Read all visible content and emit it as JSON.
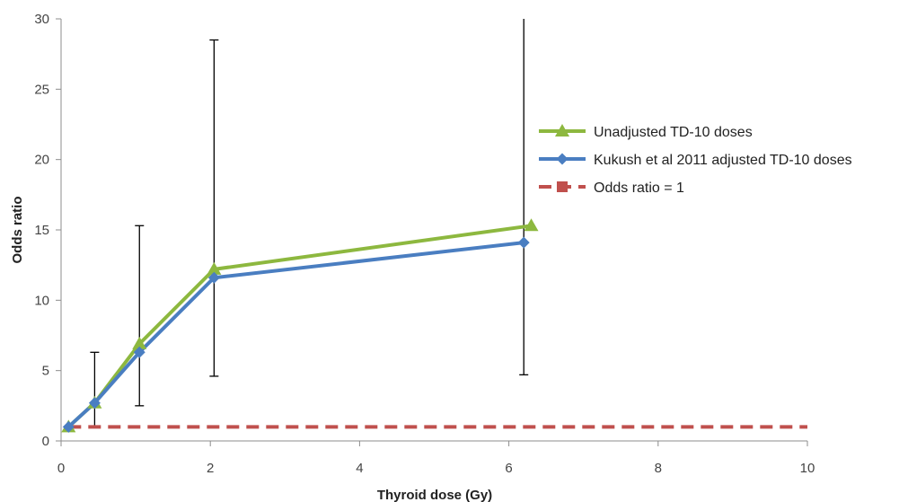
{
  "chart_data": {
    "type": "line",
    "title": "",
    "xlabel": "Thyroid dose (Gy)",
    "ylabel": "Odds ratio",
    "xlim": [
      0,
      10
    ],
    "ylim": [
      0,
      30
    ],
    "xticks": [
      0,
      2,
      4,
      6,
      8,
      10
    ],
    "yticks": [
      0,
      5,
      10,
      15,
      20,
      25,
      30
    ],
    "grid": false,
    "legend_position": "right",
    "series": [
      {
        "name": "Unadjusted TD-10 doses",
        "marker": "triangle",
        "color": "#8DB83F",
        "points": [
          {
            "x": 0.1,
            "y": 1.0
          },
          {
            "x": 0.45,
            "y": 2.7
          },
          {
            "x": 1.05,
            "y": 6.9
          },
          {
            "x": 2.05,
            "y": 12.2
          },
          {
            "x": 6.3,
            "y": 15.3
          }
        ]
      },
      {
        "name": "Kukush et al 2011 adjusted TD-10 doses",
        "marker": "diamond",
        "color": "#4A7EC1",
        "points": [
          {
            "x": 0.1,
            "y": 1.0
          },
          {
            "x": 0.45,
            "y": 2.7
          },
          {
            "x": 1.05,
            "y": 6.3
          },
          {
            "x": 2.05,
            "y": 11.6
          },
          {
            "x": 6.2,
            "y": 14.1
          }
        ]
      },
      {
        "name": "Odds ratio = 1",
        "marker": "square",
        "color": "#C0504D",
        "dashed": true,
        "points": [
          {
            "x": 0.1,
            "y": 1.0
          },
          {
            "x": 10.0,
            "y": 1.0
          }
        ]
      }
    ],
    "error_bars": [
      {
        "x": 0.45,
        "low": 1.0,
        "high": 6.3
      },
      {
        "x": 1.05,
        "low": 2.5,
        "high": 15.3
      },
      {
        "x": 2.05,
        "low": 4.6,
        "high": 28.5
      },
      {
        "x": 6.2,
        "low": 4.7,
        "high": 30.0
      }
    ]
  }
}
